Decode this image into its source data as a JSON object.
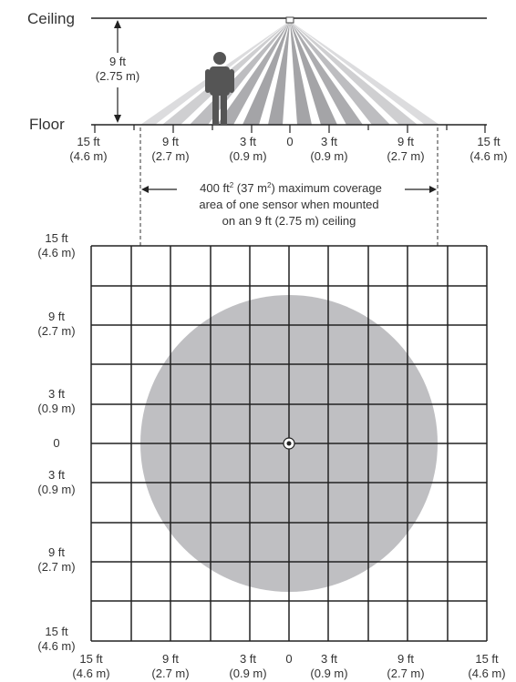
{
  "side_view": {
    "ceiling_label": "Ceiling",
    "floor_label": "Floor",
    "height_label_ft": "9 ft",
    "height_label_m": "(2.75 m)",
    "x_ticks": [
      {
        "ft": "15 ft",
        "m": "(4.6 m)"
      },
      {
        "ft": "9 ft",
        "m": "(2.7 m)"
      },
      {
        "ft": "3 ft",
        "m": "(0.9 m)"
      },
      {
        "ft": "0",
        "m": ""
      },
      {
        "ft": "3 ft",
        "m": "(0.9 m)"
      },
      {
        "ft": "9 ft",
        "m": "(2.7 m)"
      },
      {
        "ft": "15 ft",
        "m": "(4.6 m)"
      }
    ],
    "coverage_note": {
      "line1_a": "400 ft",
      "line1_sup_a": "2",
      "line1_b": " (37 m",
      "line1_sup_b": "2",
      "line1_c": ") maximum coverage",
      "line2": "area of one sensor when mounted",
      "line3": "on an 9 ft (2.75 m) ceiling"
    }
  },
  "top_view": {
    "y_labels": [
      {
        "ft": "15 ft",
        "m": "(4.6 m)"
      },
      {
        "ft": "9 ft",
        "m": "(2.7 m)"
      },
      {
        "ft": "3 ft",
        "m": "(0.9 m)"
      },
      {
        "ft": "0",
        "m": ""
      },
      {
        "ft": "3 ft",
        "m": "(0.9 m)"
      },
      {
        "ft": "9 ft",
        "m": "(2.7 m)"
      },
      {
        "ft": "15 ft",
        "m": "(4.6 m)"
      }
    ],
    "x_labels": [
      {
        "ft": "15 ft",
        "m": "(4.6 m)"
      },
      {
        "ft": "9 ft",
        "m": "(2.7 m)"
      },
      {
        "ft": "3 ft",
        "m": "(0.9 m)"
      },
      {
        "ft": "0",
        "m": ""
      },
      {
        "ft": "3 ft",
        "m": "(0.9 m)"
      },
      {
        "ft": "9 ft",
        "m": "(2.7 m)"
      },
      {
        "ft": "15 ft",
        "m": "(4.6 m)"
      }
    ]
  },
  "colors": {
    "coverage_fill": "#bfbfc2",
    "beam_dark": "#a8a8ab",
    "beam_light": "#dcdcde",
    "person": "#555555",
    "line": "#222222"
  }
}
